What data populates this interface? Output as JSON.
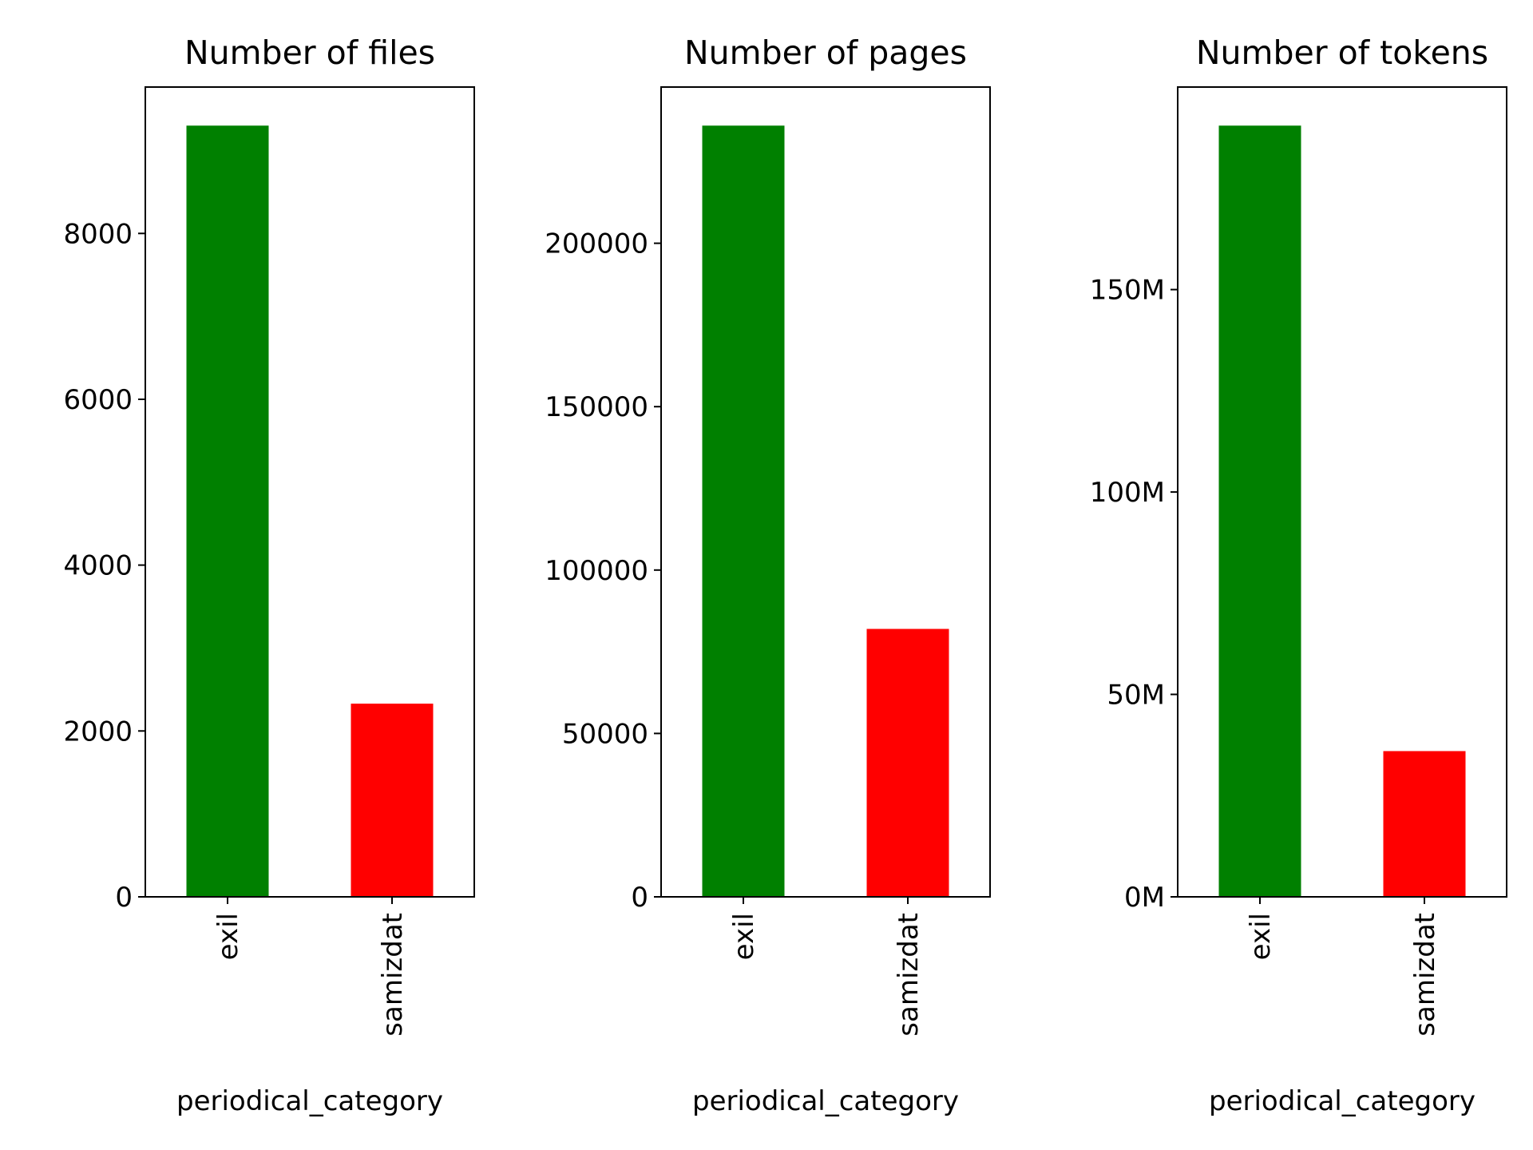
{
  "chart_data": [
    {
      "type": "bar",
      "title": "Number of files",
      "xlabel": "periodical_category",
      "ylabel": "",
      "categories": [
        "exil",
        "samizdat"
      ],
      "values": [
        9300,
        2330
      ],
      "colors": [
        "#008000",
        "#ff0000"
      ],
      "ylim": [
        0,
        9765
      ],
      "yticks": [
        0,
        2000,
        4000,
        6000,
        8000
      ],
      "ytick_labels": [
        "0",
        "2000",
        "4000",
        "6000",
        "8000"
      ],
      "grid": false
    },
    {
      "type": "bar",
      "title": "Number of pages",
      "xlabel": "periodical_category",
      "ylabel": "",
      "categories": [
        "exil",
        "samizdat"
      ],
      "values": [
        236000,
        82000
      ],
      "colors": [
        "#008000",
        "#ff0000"
      ],
      "ylim": [
        0,
        247800
      ],
      "yticks": [
        0,
        50000,
        100000,
        150000,
        200000
      ],
      "ytick_labels": [
        "0",
        "50000",
        "100000",
        "150000",
        "200000"
      ],
      "grid": false
    },
    {
      "type": "bar",
      "title": "Number of tokens",
      "xlabel": "periodical_category",
      "ylabel": "",
      "categories": [
        "exil",
        "samizdat"
      ],
      "values": [
        190500000,
        36000000
      ],
      "colors": [
        "#008000",
        "#ff0000"
      ],
      "ylim": [
        0,
        200025000
      ],
      "yticks": [
        0,
        50000000,
        100000000,
        150000000
      ],
      "ytick_labels": [
        "0M",
        "50M",
        "100M",
        "150M"
      ],
      "grid": false
    }
  ]
}
